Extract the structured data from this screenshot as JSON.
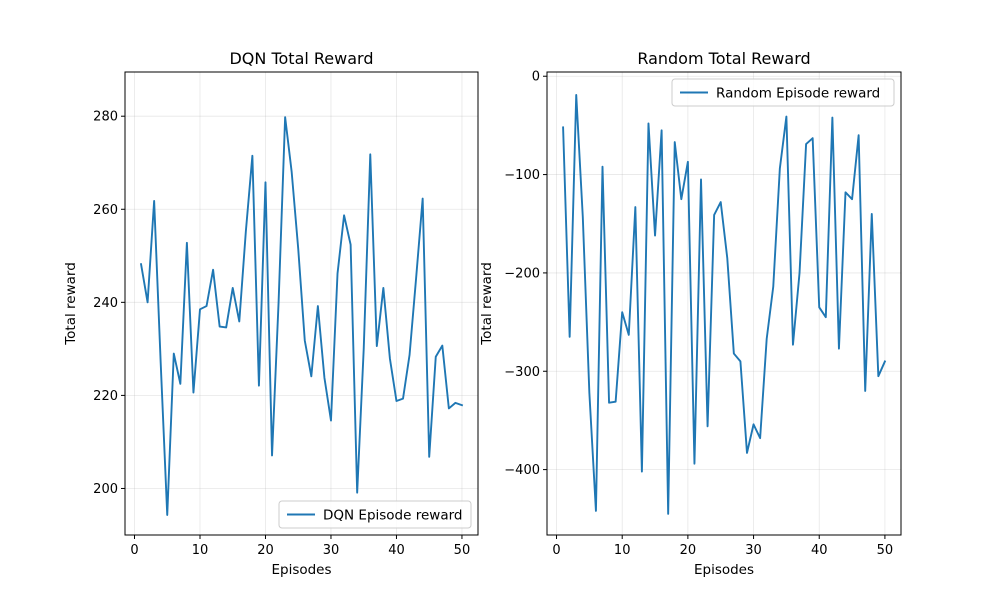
{
  "chart_data": [
    {
      "type": "line",
      "title": "DQN Total Reward",
      "xlabel": "Episodes",
      "ylabel": "Total reward",
      "xlim": [
        -1.45,
        52.45
      ],
      "ylim": [
        190.0,
        289.5
      ],
      "xticks": [
        0,
        10,
        20,
        30,
        40,
        50
      ],
      "yticks": [
        200,
        220,
        240,
        260,
        280
      ],
      "grid": true,
      "legend_position": "lower-right",
      "color": "#1f77b4",
      "series": [
        {
          "name": "DQN Episode reward",
          "x": [
            1,
            2,
            3,
            4,
            5,
            6,
            7,
            8,
            9,
            10,
            11,
            12,
            13,
            14,
            15,
            16,
            17,
            18,
            19,
            20,
            21,
            22,
            23,
            24,
            25,
            26,
            27,
            28,
            29,
            30,
            31,
            32,
            33,
            34,
            35,
            36,
            37,
            38,
            39,
            40,
            41,
            42,
            43,
            44,
            45,
            46,
            47,
            48,
            49,
            50
          ],
          "y": [
            248.2,
            240.0,
            261.8,
            227.0,
            194.3,
            229.0,
            222.5,
            252.8,
            220.6,
            238.5,
            239.2,
            247.0,
            234.8,
            234.6,
            243.1,
            235.9,
            255.2,
            271.5,
            222.1,
            265.8,
            207.1,
            240.0,
            279.8,
            268.0,
            251.5,
            231.8,
            224.1,
            239.2,
            223.8,
            214.6,
            246.2,
            258.7,
            252.4,
            199.1,
            230.0,
            271.8,
            230.6,
            243.1,
            227.9,
            218.8,
            219.3,
            228.7,
            245.2,
            262.3,
            206.8,
            228.3,
            230.7,
            217.2,
            218.4,
            217.9
          ]
        }
      ]
    },
    {
      "type": "line",
      "title": "Random Total Reward",
      "xlabel": "Episodes",
      "ylabel": "Total reward",
      "xlim": [
        -1.45,
        52.45
      ],
      "ylim": [
        -466.5,
        4.3
      ],
      "xticks": [
        0,
        10,
        20,
        30,
        40,
        50
      ],
      "yticks": [
        0,
        -100,
        -200,
        -300,
        -400
      ],
      "grid": true,
      "legend_position": "top-right",
      "color": "#1f77b4",
      "series": [
        {
          "name": "Random Episode reward",
          "x": [
            1,
            2,
            3,
            4,
            5,
            6,
            7,
            8,
            9,
            10,
            11,
            12,
            13,
            14,
            15,
            16,
            17,
            18,
            19,
            20,
            21,
            22,
            23,
            24,
            25,
            26,
            27,
            28,
            29,
            30,
            31,
            32,
            33,
            34,
            35,
            36,
            37,
            38,
            39,
            40,
            41,
            42,
            43,
            44,
            45,
            46,
            47,
            48,
            49,
            50
          ],
          "y": [
            -52,
            -265,
            -19,
            -143,
            -322,
            -442,
            -92,
            -332,
            -331,
            -240,
            -263,
            -133,
            -402,
            -48,
            -162,
            -55,
            -445,
            -67,
            -125,
            -87,
            -394,
            -105,
            -356,
            -141,
            -128,
            -185,
            -282,
            -290,
            -383,
            -354,
            -368,
            -267,
            -214,
            -94,
            -41,
            -273,
            -200,
            -69,
            -63,
            -235,
            -245,
            -42,
            -277,
            -118,
            -125,
            -60,
            -320,
            -140,
            -305,
            -290
          ]
        }
      ]
    }
  ]
}
